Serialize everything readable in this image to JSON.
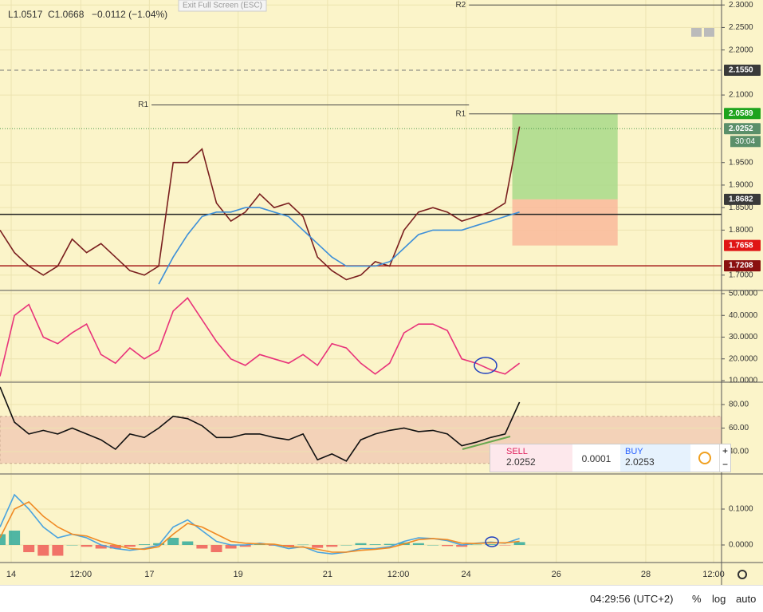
{
  "header": {
    "low": "L1.0517",
    "close": "C1.0668",
    "change": "−0.0112 (−1.04%)",
    "exit_button": "Exit Full Screen (ESC)"
  },
  "time_axis": {
    "xlim": [
      0,
      100
    ],
    "xticks": [
      {
        "value": 1.55,
        "label": "14"
      },
      {
        "value": 11.2,
        "label": "12:00"
      },
      {
        "value": 20.7,
        "label": "17"
      },
      {
        "value": 33,
        "label": "19"
      },
      {
        "value": 45.4,
        "label": "21"
      },
      {
        "value": 55.2,
        "label": "12:00"
      },
      {
        "value": 64.6,
        "label": "24"
      },
      {
        "value": 77.1,
        "label": "26"
      },
      {
        "value": 89.5,
        "label": "28"
      },
      {
        "value": 98.9,
        "label": "12:00"
      }
    ],
    "grid": true
  },
  "chart_data": [
    {
      "type": "line",
      "ylim": [
        1.666,
        2.311
      ],
      "yticks": [
        {
          "value": 1.7,
          "label": "1.7000"
        },
        {
          "value": 1.8,
          "label": "1.8000"
        },
        {
          "value": 1.85,
          "label": "1.8500"
        },
        {
          "value": 1.9,
          "label": "1.9000"
        },
        {
          "value": 1.95,
          "label": "1.9500"
        },
        {
          "value": 2.1,
          "label": "2.1000"
        },
        {
          "value": 2.2,
          "label": "2.2000"
        },
        {
          "value": 2.25,
          "label": "2.2500"
        },
        {
          "value": 2.3,
          "label": "2.3000"
        }
      ],
      "grid": true,
      "x": [
        0,
        2,
        4,
        6,
        8,
        10,
        12,
        14,
        16,
        18,
        20,
        22,
        24,
        26,
        28,
        30,
        32,
        34,
        36,
        38,
        40,
        42,
        44,
        46,
        48,
        50,
        52,
        54,
        56,
        58,
        60,
        62,
        64,
        66,
        68,
        70,
        72
      ],
      "series": [
        {
          "name": "Price",
          "color": "#7a1f1f",
          "values": [
            1.8,
            1.75,
            1.72,
            1.7,
            1.72,
            1.78,
            1.75,
            1.77,
            1.74,
            1.71,
            1.7,
            1.72,
            1.95,
            1.95,
            1.98,
            1.86,
            1.82,
            1.84,
            1.88,
            1.85,
            1.86,
            1.83,
            1.74,
            1.71,
            1.69,
            1.7,
            1.73,
            1.72,
            1.8,
            1.84,
            1.85,
            1.84,
            1.82,
            1.83,
            1.84,
            1.86,
            2.03
          ]
        },
        {
          "name": "MA",
          "color": "#3d8fd8",
          "values": [
            null,
            null,
            null,
            null,
            null,
            null,
            null,
            null,
            null,
            null,
            null,
            1.68,
            1.74,
            1.79,
            1.83,
            1.84,
            1.84,
            1.85,
            1.85,
            1.84,
            1.83,
            1.8,
            1.77,
            1.74,
            1.72,
            1.72,
            1.72,
            1.73,
            1.76,
            1.79,
            1.8,
            1.8,
            1.8,
            1.81,
            1.82,
            1.83,
            1.84
          ]
        }
      ],
      "levels": [
        {
          "label": "R1",
          "value": 2.078,
          "from": 21,
          "to": 65
        },
        {
          "label": "R1",
          "value": 2.058,
          "from": 65,
          "to": 100
        },
        {
          "label": "R2",
          "value": 2.3,
          "from": 65,
          "to": 100
        }
      ],
      "lines": [
        {
          "value": 2.155,
          "color": "#777777",
          "style": "dashed"
        },
        {
          "value": 2.0252,
          "color": "#4c9a4c",
          "style": "dotted"
        },
        {
          "value": 1.835,
          "color": "#222222",
          "style": "solid"
        },
        {
          "value": 1.7208,
          "color": "#a61c1c",
          "style": "solid"
        }
      ],
      "position": {
        "from": 71,
        "to": 85.6,
        "entry": 1.8682,
        "target": 2.0589,
        "stop": 1.7658,
        "profit_color": "#a8d98a",
        "loss_color": "#f9b99b"
      },
      "price_labels": [
        {
          "value": 2.155,
          "label": "2.1550",
          "color": "#3a3a3a"
        },
        {
          "value": 2.0589,
          "label": "2.0589",
          "color": "#1ea31e"
        },
        {
          "value": 2.0252,
          "label": "2.0252",
          "color": "#5b8f6a"
        },
        {
          "value": 1.8682,
          "label": "1.8682",
          "color": "#3a3a3a"
        },
        {
          "value": 1.7658,
          "label": "1.7658",
          "color": "#e01515"
        },
        {
          "value": 1.7208,
          "label": "1.7208",
          "color": "#8a1010"
        }
      ],
      "countdown": "30:04"
    },
    {
      "type": "line",
      "ylim": [
        9.27,
        51.1
      ],
      "yticks": [
        {
          "value": 10,
          "label": "10.0000"
        },
        {
          "value": 20,
          "label": "20.0000"
        },
        {
          "value": 30,
          "label": "30.0000"
        },
        {
          "value": 40,
          "label": "40.0000"
        },
        {
          "value": 50,
          "label": "50.0000"
        }
      ],
      "grid": true,
      "x": [
        0,
        2,
        4,
        6,
        8,
        10,
        12,
        14,
        16,
        18,
        20,
        22,
        24,
        26,
        28,
        30,
        32,
        34,
        36,
        38,
        40,
        42,
        44,
        46,
        48,
        50,
        52,
        54,
        56,
        58,
        60,
        62,
        64,
        66,
        68,
        70,
        72
      ],
      "series": [
        {
          "name": "ADX",
          "color": "#e8337a",
          "values": [
            12,
            40,
            45,
            30,
            27,
            32,
            36,
            22,
            18,
            25,
            20,
            24,
            42,
            48,
            38,
            28,
            20,
            17,
            22,
            20,
            18,
            22,
            17,
            27,
            25,
            18,
            13,
            18,
            32,
            36,
            36,
            33,
            20,
            18,
            15,
            13,
            18
          ]
        }
      ]
    },
    {
      "type": "line",
      "ylim": [
        21,
        98.3
      ],
      "yticks": [
        {
          "value": 40,
          "label": "40.00"
        },
        {
          "value": 60,
          "label": "60.00"
        },
        {
          "value": 80,
          "label": "80.00"
        }
      ],
      "grid": true,
      "band": [
        30,
        70
      ],
      "band_color": "#f3d2b8",
      "x": [
        0,
        2,
        4,
        6,
        8,
        10,
        12,
        14,
        16,
        18,
        20,
        22,
        24,
        26,
        28,
        30,
        32,
        34,
        36,
        38,
        40,
        42,
        44,
        46,
        48,
        50,
        52,
        54,
        56,
        58,
        60,
        62,
        64,
        66,
        68,
        70,
        72
      ],
      "series": [
        {
          "name": "RSI",
          "color": "#111111",
          "values": [
            95,
            65,
            55,
            58,
            55,
            60,
            55,
            50,
            42,
            55,
            52,
            60,
            70,
            68,
            62,
            52,
            52,
            55,
            55,
            52,
            50,
            55,
            33,
            38,
            32,
            50,
            55,
            58,
            60,
            57,
            58,
            55,
            45,
            48,
            52,
            55,
            82
          ]
        }
      ]
    },
    {
      "type": "line",
      "ylim": [
        -0.0489,
        0.1956
      ],
      "yticks": [
        {
          "value": 0,
          "label": "0.0000"
        },
        {
          "value": 0.1,
          "label": "0.1000"
        }
      ],
      "grid": true,
      "x": [
        0,
        2,
        4,
        6,
        8,
        10,
        12,
        14,
        16,
        18,
        20,
        22,
        24,
        26,
        28,
        30,
        32,
        34,
        36,
        38,
        40,
        42,
        44,
        46,
        48,
        50,
        52,
        54,
        56,
        58,
        60,
        62,
        64,
        66,
        68,
        70,
        72
      ],
      "series": [
        {
          "name": "Histogram",
          "style": "histogram",
          "color": "#26a69a",
          "negative_color": "#ef5350",
          "values": [
            0.03,
            0.04,
            -0.02,
            -0.03,
            -0.03,
            0,
            -0.005,
            -0.01,
            -0.01,
            -0.005,
            0.002,
            0.005,
            0.02,
            0.01,
            -0.01,
            -0.02,
            -0.01,
            -0.005,
            0.002,
            -0.002,
            -0.005,
            0.001,
            -0.008,
            -0.005,
            0,
            0.005,
            0.002,
            0.003,
            0.007,
            0.005,
            0,
            -0.003,
            -0.005,
            0.001,
            0.002,
            -0.001,
            0.008
          ]
        },
        {
          "name": "MACD",
          "color": "#4aa3df",
          "values": [
            0.05,
            0.14,
            0.1,
            0.05,
            0.02,
            0.03,
            0.02,
            0.0,
            -0.01,
            -0.015,
            -0.01,
            0.0,
            0.05,
            0.07,
            0.04,
            0.01,
            0.0,
            0.0,
            0.005,
            0.0,
            -0.01,
            -0.005,
            -0.02,
            -0.025,
            -0.02,
            -0.01,
            -0.01,
            -0.005,
            0.01,
            0.02,
            0.018,
            0.012,
            0.0,
            0.005,
            0.008,
            0.005,
            0.018
          ]
        },
        {
          "name": "Signal",
          "color": "#f08a24",
          "values": [
            0.02,
            0.1,
            0.12,
            0.08,
            0.05,
            0.03,
            0.025,
            0.01,
            0.0,
            -0.01,
            -0.012,
            -0.005,
            0.03,
            0.06,
            0.05,
            0.03,
            0.01,
            0.005,
            0.003,
            0.002,
            -0.005,
            -0.006,
            -0.012,
            -0.02,
            -0.02,
            -0.015,
            -0.012,
            -0.008,
            0.003,
            0.015,
            0.018,
            0.015,
            0.005,
            0.004,
            0.006,
            0.006,
            0.01
          ]
        }
      ]
    }
  ],
  "trade_widget": {
    "sell_label": "SELL",
    "sell_price": "2.0252",
    "spread": "0.0001",
    "buy_label": "BUY",
    "buy_price": "2.0253"
  },
  "status_bar": {
    "clock": "04:29:56 (UTC+2)",
    "percent": "%",
    "log": "log",
    "auto": "auto"
  }
}
